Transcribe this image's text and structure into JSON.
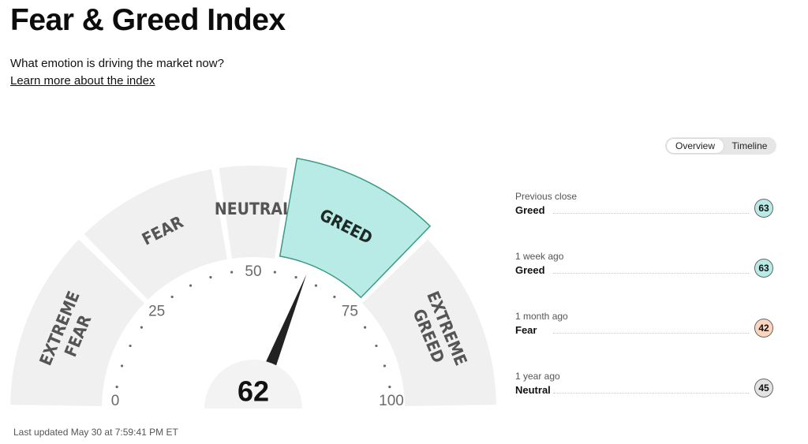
{
  "header": {
    "title": "Fear & Greed Index",
    "subtitle": "What emotion is driving the market now?",
    "learn_link": "Learn more about the index"
  },
  "view_toggle": {
    "overview": "Overview",
    "timeline": "Timeline",
    "active": "Overview"
  },
  "gauge": {
    "value": 62,
    "value_text": "62",
    "range": [
      0,
      100
    ],
    "active_segment": "GREED",
    "ticks": [
      "0",
      "25",
      "50",
      "75",
      "100"
    ],
    "segments": [
      {
        "lines": [
          "EXTREME",
          "FEAR"
        ],
        "from": 0,
        "to": 25
      },
      {
        "lines": [
          "FEAR"
        ],
        "from": 25,
        "to": 45
      },
      {
        "lines": [
          "NEUTRAL"
        ],
        "from": 45,
        "to": 55
      },
      {
        "lines": [
          "GREED"
        ],
        "from": 55,
        "to": 75
      },
      {
        "lines": [
          "EXTREME",
          "GREED"
        ],
        "from": 75,
        "to": 100
      }
    ],
    "colors": {
      "segment": "#f0f0f0",
      "active_fill": "#b8ebe5",
      "active_stroke": "#3a9a83",
      "needle": "#222222"
    }
  },
  "history": [
    {
      "label": "Previous close",
      "sentiment": "Greed",
      "value": "63",
      "badge_color": "#b8ebe5"
    },
    {
      "label": "1 week ago",
      "sentiment": "Greed",
      "value": "63",
      "badge_color": "#b8ebe5"
    },
    {
      "label": "1 month ago",
      "sentiment": "Fear",
      "value": "42",
      "badge_color": "#fbd5bd"
    },
    {
      "label": "1 year ago",
      "sentiment": "Neutral",
      "value": "45",
      "badge_color": "#e3e3e3"
    }
  ],
  "last_updated": "Last updated May 30 at 7:59:41 PM ET"
}
